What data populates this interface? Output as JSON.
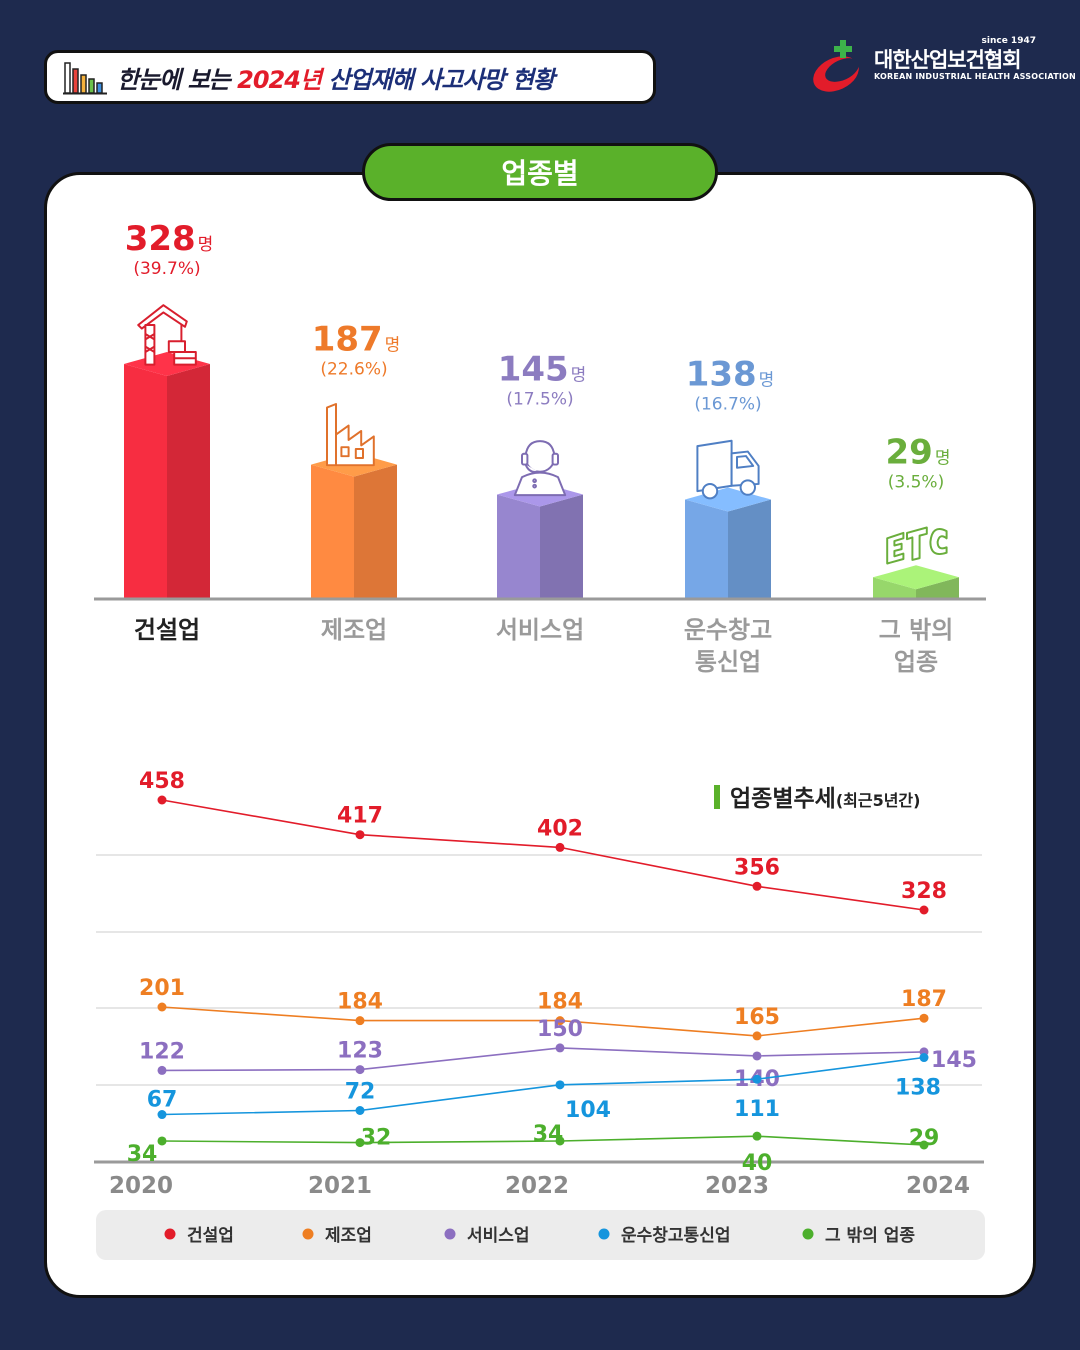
{
  "header": {
    "title_prefix": "한눈에 보는 ",
    "title_year": "2024년",
    "title_main": " 산업재해 사고사망 현황"
  },
  "logo": {
    "since": "since 1947",
    "name_ko": "대한산업보건협회",
    "name_en": "KOREAN INDUSTRIAL HEALTH ASSOCIATION"
  },
  "section_label": "업종별",
  "chart_data": [
    {
      "type": "bar",
      "count_unit": "명",
      "categories": [
        "건설업",
        "제조업",
        "서비스업",
        "운수창고\n통신업",
        "그 밖의\n업종"
      ],
      "values": [
        328,
        187,
        145,
        138,
        29
      ],
      "percent_labels": [
        "(39.7%)",
        "(22.6%)",
        "(17.5%)",
        "(16.7%)",
        "(3.5%)"
      ],
      "icons": [
        "crane-icon",
        "factory-icon",
        "call-center-agent-icon",
        "delivery-truck-icon",
        "etc-icon"
      ],
      "colors": [
        "#e52a3c",
        "#f0803c",
        "#8c7cc0",
        "#6d9bd6",
        "#8cc763"
      ],
      "label_colors": [
        "#e21c2a",
        "#ee7a2a",
        "#8c7cc0",
        "#6b98d4",
        "#6aae3c"
      ],
      "highlight_category_index": 0
    },
    {
      "type": "line",
      "title": "업종별추세",
      "subtitle": "(최근5년간)",
      "x": [
        "2020",
        "2021",
        "2022",
        "2023",
        "2024"
      ],
      "series": [
        {
          "name": "건설업",
          "color": "#e21c2a",
          "values": [
            458,
            417,
            402,
            356,
            328
          ]
        },
        {
          "name": "제조업",
          "color": "#ee7e22",
          "values": [
            201,
            184,
            184,
            165,
            187
          ]
        },
        {
          "name": "서비스업",
          "color": "#8c6fc0",
          "values": [
            122,
            123,
            150,
            140,
            145
          ]
        },
        {
          "name": "운수창고통신업",
          "color": "#1595dd",
          "values": [
            67,
            72,
            104,
            111,
            138
          ]
        },
        {
          "name": "그 밖의 업종",
          "color": "#4caf2c",
          "values": [
            34,
            32,
            34,
            40,
            29
          ]
        }
      ],
      "grid": true,
      "legend_position": "bottom"
    }
  ]
}
